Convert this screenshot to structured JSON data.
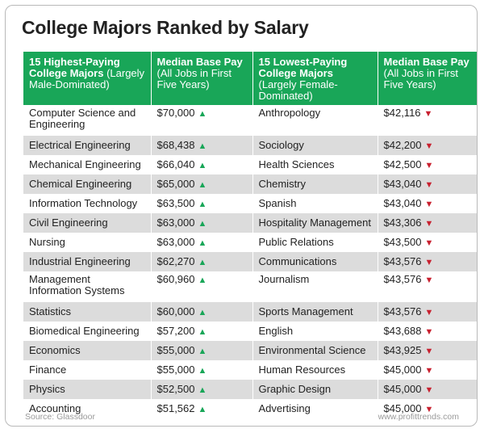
{
  "title": "College Majors Ranked by Salary",
  "colors": {
    "header_green": "#19a658",
    "up_arrow": "#19a658",
    "down_arrow": "#c8202f",
    "stripe": "#dcdcdc"
  },
  "icons": {
    "up": "triangle-up-icon",
    "down": "triangle-down-icon"
  },
  "headers": {
    "high_major_bold": "15 Highest-Paying College Majors",
    "high_major_rest": " (Largely Male-Dominated)",
    "high_pay_bold": "Median Base Pay",
    "high_pay_rest": " (All Jobs in First Five Years)",
    "low_major_bold": "15 Lowest-Paying College Majors",
    "low_major_rest": " (Largely Female-Dominated)",
    "low_pay_bold": "Median Base Pay",
    "low_pay_rest": " (All Jobs in First Five Years)"
  },
  "chart_data": {
    "type": "table",
    "title": "College Majors Ranked by Salary",
    "columns": [
      "15 Highest-Paying College Majors (Largely Male-Dominated)",
      "Median Base Pay (All Jobs in First Five Years)",
      "15 Lowest-Paying College Majors (Largely Female-Dominated)",
      "Median Base Pay (All Jobs in First Five Years)"
    ],
    "rows": [
      [
        "Computer Science and Engineering",
        "$70,000",
        "Anthropology",
        "$42,116"
      ],
      [
        "Electrical Engineering",
        "$68,438",
        "Sociology",
        "$42,200"
      ],
      [
        "Mechanical Engineering",
        "$66,040",
        "Health Sciences",
        "$42,500"
      ],
      [
        "Chemical Engineering",
        "$65,000",
        "Chemistry",
        "$43,040"
      ],
      [
        "Information Technology",
        "$63,500",
        "Spanish",
        "$43,040"
      ],
      [
        "Civil Engineering",
        "$63,000",
        "Hospitality Management",
        "$43,306"
      ],
      [
        "Nursing",
        "$63,000",
        "Public Relations",
        "$43,500"
      ],
      [
        "Industrial Engineering",
        "$62,270",
        "Communications",
        "$43,576"
      ],
      [
        "Management Information Systems",
        "$60,960",
        "Journalism",
        "$43,576"
      ],
      [
        "Statistics",
        "$60,000",
        "Sports Management",
        "$43,576"
      ],
      [
        "Biomedical Engineering",
        "$57,200",
        "English",
        "$43,688"
      ],
      [
        "Economics",
        "$55,000",
        "Environmental Science",
        "$43,925"
      ],
      [
        "Finance",
        "$55,000",
        "Human Resources",
        "$45,000"
      ],
      [
        "Physics",
        "$52,500",
        "Graphic Design",
        "$45,000"
      ],
      [
        "Accounting",
        "$51,562",
        "Advertising",
        "$45,000"
      ]
    ]
  },
  "footer": {
    "source": "Source: Glassdoor",
    "website": "www.profittrends.com"
  }
}
